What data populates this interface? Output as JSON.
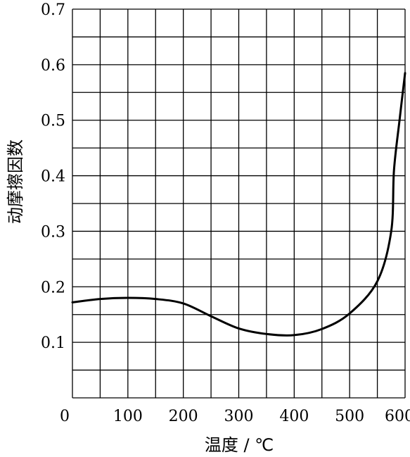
{
  "chart_data": {
    "type": "line",
    "title": "",
    "xlabel": "温度 / ℃",
    "ylabel": "动摩擦因数",
    "xlim": [
      0,
      600
    ],
    "ylim": [
      0,
      0.7
    ],
    "grid": true,
    "x_tick_values": [
      0,
      100,
      200,
      300,
      400,
      500,
      600
    ],
    "x_tick_labels": [
      "0",
      "100",
      "200",
      "300",
      "400",
      "500",
      "600"
    ],
    "y_tick_values": [
      0.1,
      0.2,
      0.3,
      0.4,
      0.5,
      0.6,
      0.7
    ],
    "y_tick_labels": [
      "0.1",
      "0.2",
      "0.3",
      "0.4",
      "0.5",
      "0.6",
      "0.7"
    ],
    "series": [
      {
        "name": "",
        "color": "#000000",
        "x": [
          0,
          50,
          100,
          150,
          200,
          250,
          300,
          350,
          400,
          450,
          500,
          550,
          575,
          580,
          590,
          600
        ],
        "y": [
          0.172,
          0.178,
          0.18,
          0.178,
          0.17,
          0.147,
          0.125,
          0.115,
          0.113,
          0.124,
          0.152,
          0.21,
          0.3,
          0.41,
          0.5,
          0.585
        ]
      }
    ]
  }
}
